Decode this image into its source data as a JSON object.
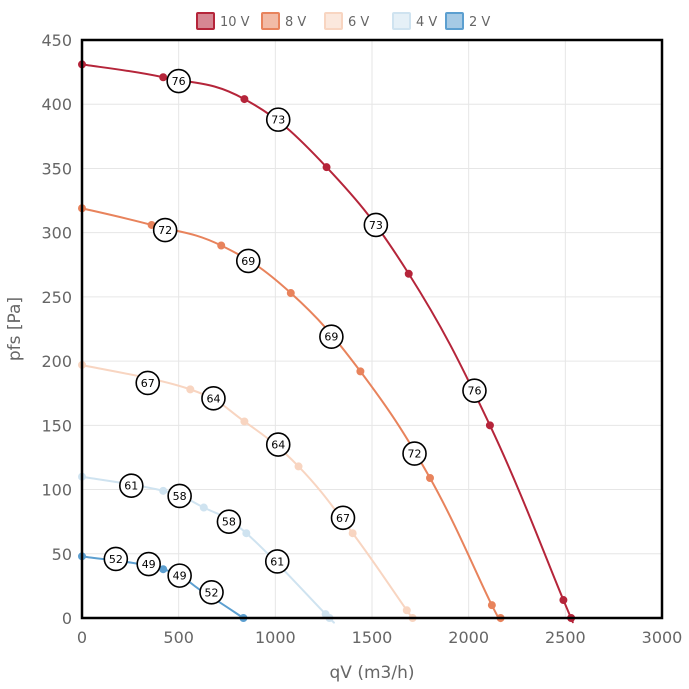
{
  "chart_data": {
    "type": "line",
    "xlabel": "qV (m3/h)",
    "ylabel": "pfs [Pa]",
    "xlim": [
      0,
      3000
    ],
    "ylim": [
      0,
      450
    ],
    "xticks": [
      "0",
      "500",
      "1000",
      "1500",
      "2000",
      "2500",
      "3000"
    ],
    "yticks": [
      "0",
      "50",
      "100",
      "150",
      "200",
      "250",
      "300",
      "350",
      "400",
      "450"
    ],
    "grid": true,
    "legend_position": "top-center",
    "series": [
      {
        "name": "10 V",
        "color": "#b5253a",
        "x": [
          0,
          420,
          840,
          1265,
          1690,
          2110,
          2490,
          2530
        ],
        "y": [
          431,
          421,
          404,
          351,
          268,
          150,
          14,
          0
        ],
        "badges": [
          {
            "x": 500,
            "y": 418,
            "label": "76"
          },
          {
            "x": 1015,
            "y": 388,
            "label": "73"
          },
          {
            "x": 1520,
            "y": 306,
            "label": "73"
          },
          {
            "x": 2030,
            "y": 177,
            "label": "76"
          }
        ]
      },
      {
        "name": "8 V",
        "color": "#e8835c",
        "x": [
          0,
          360,
          720,
          1080,
          1440,
          1800,
          2120,
          2165
        ],
        "y": [
          319,
          306,
          290,
          253,
          192,
          109,
          10,
          0
        ],
        "badges": [
          {
            "x": 430,
            "y": 302,
            "label": "72"
          },
          {
            "x": 860,
            "y": 278,
            "label": "69"
          },
          {
            "x": 1290,
            "y": 219,
            "label": "69"
          },
          {
            "x": 1720,
            "y": 128,
            "label": "72"
          }
        ]
      },
      {
        "name": "6 V",
        "color": "#f8d5c1",
        "x": [
          0,
          560,
          840,
          1120,
          1400,
          1680,
          1710
        ],
        "y": [
          197,
          178,
          153,
          118,
          66,
          6,
          0
        ],
        "badges": [
          {
            "x": 340,
            "y": 183,
            "label": "67"
          },
          {
            "x": 680,
            "y": 171,
            "label": "64"
          },
          {
            "x": 1015,
            "y": 135,
            "label": "64"
          },
          {
            "x": 1350,
            "y": 78,
            "label": "67"
          }
        ]
      },
      {
        "name": "4 V",
        "color": "#cfe3f0",
        "x": [
          0,
          420,
          630,
          850,
          1260,
          1280
        ],
        "y": [
          110,
          99,
          86,
          66,
          3,
          0
        ],
        "badges": [
          {
            "x": 255,
            "y": 103,
            "label": "61"
          },
          {
            "x": 505,
            "y": 95,
            "label": "58"
          },
          {
            "x": 760,
            "y": 75,
            "label": "58"
          },
          {
            "x": 1010,
            "y": 44,
            "label": "61"
          }
        ]
      },
      {
        "name": "2 V",
        "color": "#5c9fd0",
        "x": [
          0,
          420,
          630,
          835
        ],
        "y": [
          48,
          38,
          20,
          0
        ],
        "badges": [
          {
            "x": 175,
            "y": 46,
            "label": "52"
          },
          {
            "x": 345,
            "y": 42,
            "label": "49"
          },
          {
            "x": 505,
            "y": 33,
            "label": "49"
          },
          {
            "x": 670,
            "y": 20,
            "label": "52"
          }
        ]
      }
    ]
  }
}
